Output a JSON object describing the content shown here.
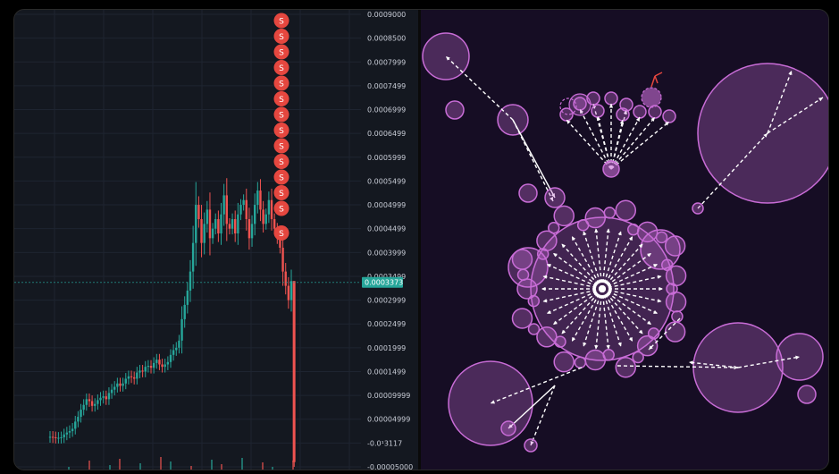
{
  "chart_data": [
    {
      "type": "candlestick",
      "title": "",
      "xlabel": "",
      "ylabel": "",
      "ylim": [
        -5e-05,
        0.0009
      ],
      "y_ticks": [
        {
          "value": 0.0009,
          "label": "0.0009000"
        },
        {
          "value": 0.00085,
          "label": "0.0008500"
        },
        {
          "value": 0.0008,
          "label": "0.0007999"
        },
        {
          "value": 0.00075,
          "label": "0.0007499"
        },
        {
          "value": 0.0007,
          "label": "0.0006999"
        },
        {
          "value": 0.00065,
          "label": "0.0006499"
        },
        {
          "value": 0.0006,
          "label": "0.0005999"
        },
        {
          "value": 0.00055,
          "label": "0.0005499"
        },
        {
          "value": 0.0005,
          "label": "0.0004999"
        },
        {
          "value": 0.00045,
          "label": "0.0004499"
        },
        {
          "value": 0.0004,
          "label": "0.0003999"
        },
        {
          "value": 0.00035,
          "label": "0.0003499"
        },
        {
          "value": 0.0003,
          "label": "0.0002999"
        },
        {
          "value": 0.00025,
          "label": "0.0002499"
        },
        {
          "value": 0.0002,
          "label": "0.0001999"
        },
        {
          "value": 0.00015,
          "label": "0.0001499"
        },
        {
          "value": 0.0001,
          "label": "0.00009999"
        },
        {
          "value": 5e-05,
          "label": "0.00004999"
        },
        {
          "value": 0.0,
          "label": "-0.0¹3117"
        },
        {
          "value": -5e-05,
          "label": "-0.00005000"
        }
      ],
      "current_price": {
        "value": 0.0003373,
        "label": "0.0003373",
        "color": "#26a69a"
      },
      "sell_marker": {
        "label": "S",
        "count": 14,
        "color": "#e5473f"
      },
      "colors": {
        "up": "#26a69a",
        "down": "#ef5350",
        "background": "#141820",
        "grid": "#1e2430"
      },
      "close_series": [
        1.3e-05,
        1.2e-05,
        1.1e-05,
        1.1e-05,
        1.2e-05,
        1.8e-05,
        2.2e-05,
        2.5e-05,
        3e-05,
        4.5e-05,
        5.5e-05,
        7e-05,
        8e-05,
        9.2e-05,
        8.8e-05,
        7.8e-05,
        8.2e-05,
        9e-05,
        9.5e-05,
        9.8e-05,
        9.2e-05,
        0.000105,
        0.000112,
        0.000118,
        0.000125,
        0.00012,
        0.000125,
        0.000135,
        0.00014,
        0.000138,
        0.000135,
        0.000148,
        0.000152,
        0.00015,
        0.00016,
        0.000162,
        0.000158,
        0.000168,
        0.000175,
        0.000165,
        0.00016,
        0.000165,
        0.00017,
        0.000185,
        0.000195,
        0.0002,
        0.000215,
        0.00026,
        0.00029,
        0.00032,
        0.00036,
        0.00042,
        0.0005,
        0.00047,
        0.00042,
        0.00046,
        0.00049,
        0.00043,
        0.00045,
        0.00047,
        0.00044,
        0.00048,
        0.00052,
        0.00046,
        0.00045,
        0.00047,
        0.00044,
        0.00048,
        0.0005,
        0.00051,
        0.00047,
        0.00043,
        0.00046,
        0.0005,
        0.00053,
        0.00049,
        0.00046,
        0.00048,
        0.00051,
        0.00047,
        0.00045,
        0.00043,
        0.00041,
        0.00036,
        0.00033,
        0.0003,
        0.00034
      ]
    }
  ],
  "network_graph": {
    "hub_color": "#ffffff",
    "node_color": "#c86cd6",
    "edge_color": "#ffffff",
    "background": "#160d24"
  }
}
